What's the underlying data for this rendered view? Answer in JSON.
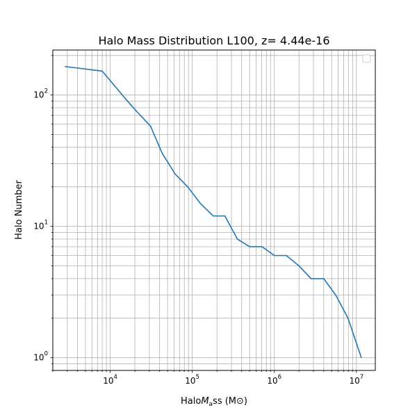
{
  "chart_data": {
    "type": "line",
    "title": "Halo Mass Distribution L100, z= 4.44e-16",
    "xlabel": "HaloMass (M⊙)",
    "ylabel": "Halo Number",
    "xscale": "log",
    "yscale": "log",
    "xlim": [
      2000,
      17000000
    ],
    "ylim": [
      0.8,
      220
    ],
    "grid": true,
    "grid_which": "both",
    "legend": "top-right",
    "legend_entries": [],
    "line_color": "#1f77b4",
    "x_tick_labels": [
      {
        "value": 10000,
        "base": "10",
        "exp": "4"
      },
      {
        "value": 100000,
        "base": "10",
        "exp": "5"
      },
      {
        "value": 1000000,
        "base": "10",
        "exp": "6"
      },
      {
        "value": 10000000,
        "base": "10",
        "exp": "7"
      }
    ],
    "y_tick_labels": [
      {
        "value": 1,
        "base": "10",
        "exp": "0"
      },
      {
        "value": 10,
        "base": "10",
        "exp": "1"
      },
      {
        "value": 100,
        "base": "10",
        "exp": "2"
      }
    ],
    "series": [
      {
        "x": [
          2800,
          8000,
          11000,
          15500,
          21000,
          31000,
          43000,
          62000,
          88000,
          125000,
          180000,
          250000,
          355000,
          500000,
          710000,
          1000000,
          1400000,
          2000000,
          2800000,
          4000000,
          5600000,
          7900000,
          11500000
        ],
        "y": [
          165,
          152,
          120,
          93,
          75,
          58,
          36,
          25,
          20,
          15,
          12,
          12,
          8,
          7,
          7,
          6,
          6,
          5,
          4,
          4,
          3,
          2,
          1
        ]
      }
    ]
  }
}
